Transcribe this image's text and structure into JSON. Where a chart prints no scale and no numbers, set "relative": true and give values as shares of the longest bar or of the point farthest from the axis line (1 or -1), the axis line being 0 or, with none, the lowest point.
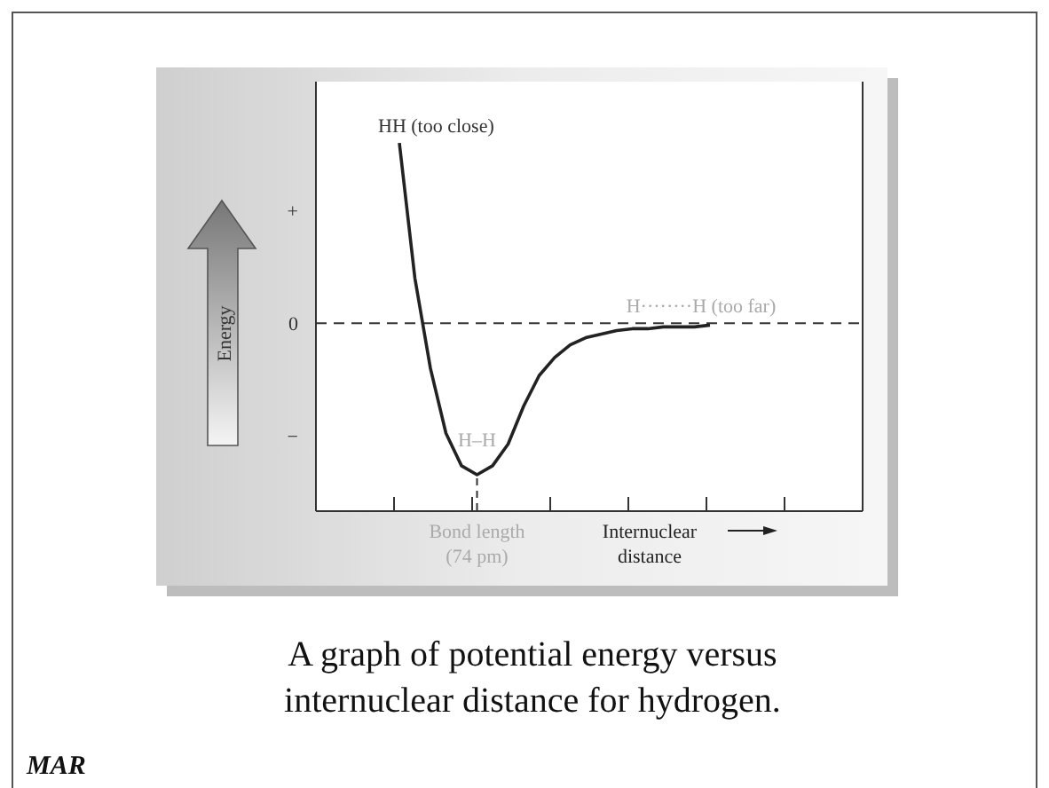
{
  "chart_data": {
    "type": "line",
    "relative": true,
    "xlabel": "Internuclear distance",
    "categories": [
      null,
      null,
      null,
      null,
      null,
      null,
      null,
      null,
      null,
      null,
      null,
      null,
      null,
      null,
      null,
      null,
      null,
      null,
      null,
      null,
      null
    ],
    "series": [
      {
        "color": "#222222",
        "values": [
          1.0,
          0.25,
          -0.25,
          -0.61,
          -0.79,
          -0.84,
          -0.79,
          -0.67,
          -0.46,
          -0.29,
          -0.19,
          -0.12,
          -0.08,
          -0.06,
          -0.04,
          -0.03,
          -0.03,
          -0.02,
          -0.02,
          -0.02,
          -0.01
        ]
      }
    ],
    "ref_lines": [
      {
        "axis": "y",
        "value": 0,
        "label": "0",
        "line_style": "dashed",
        "color": "#333333"
      }
    ],
    "marker": "none",
    "line_style": "solid",
    "annotations": [
      "HH (too close)",
      "H–H",
      "H········H (too far)",
      "Bond length (74 pm)",
      "+",
      "−",
      "A graph of potential energy versus internuclear distance for hydrogen.",
      "MAR",
      "Energy"
    ]
  }
}
